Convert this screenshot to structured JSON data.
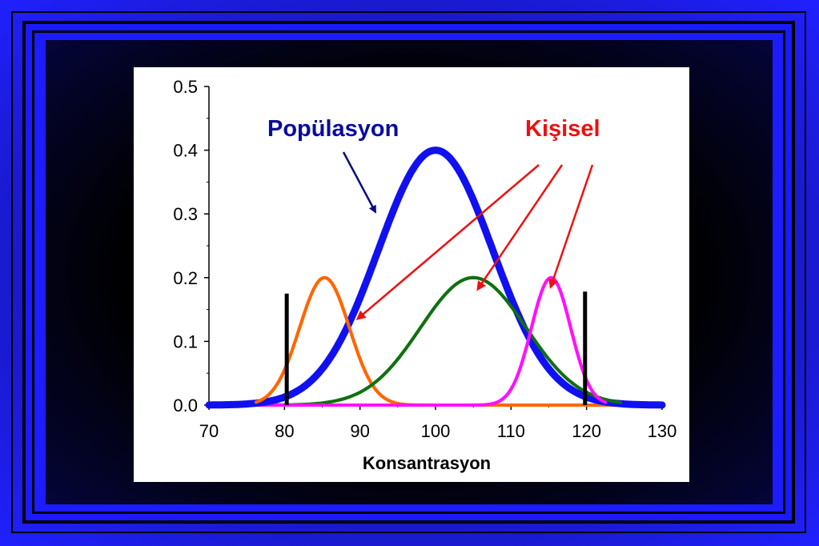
{
  "chart_data": {
    "type": "line",
    "title": "",
    "xlabel": "Konsantrasyon",
    "ylabel": "",
    "xlim": [
      70,
      130
    ],
    "ylim": [
      0,
      0.5
    ],
    "x_ticks": [
      "70",
      "80",
      "90",
      "100",
      "110",
      "120",
      "130"
    ],
    "y_ticks": [
      "0.0",
      "0.1",
      "0.2",
      "0.3",
      "0.4",
      "0.5"
    ],
    "grid": false,
    "series": [
      {
        "label_ref": "Popülasyon",
        "color": "#1010f0",
        "mean": 100,
        "sd": 7.6,
        "peak": 0.4
      },
      {
        "label_ref": "Kişisel",
        "color": "#ff6600",
        "mean": 85.3,
        "sd": 3.3,
        "peak": 0.2
      },
      {
        "label_ref": "Kişisel",
        "color": "#107010",
        "mean": 105,
        "sd": 7.0,
        "peak": 0.2
      },
      {
        "label_ref": "Kişisel",
        "color": "#ff10ff",
        "mean": 115.3,
        "sd": 2.6,
        "peak": 0.2
      }
    ],
    "reference_lines": [
      {
        "x": 80.3,
        "y_top": 0.175,
        "color": "#000000"
      },
      {
        "x": 119.8,
        "y_top": 0.178,
        "color": "#000000"
      }
    ],
    "annotations": {
      "population": {
        "text": "Popülasyon",
        "color": "#0a0aa0"
      },
      "individual": {
        "text": "Kişisel",
        "color": "#ee1010"
      }
    }
  }
}
